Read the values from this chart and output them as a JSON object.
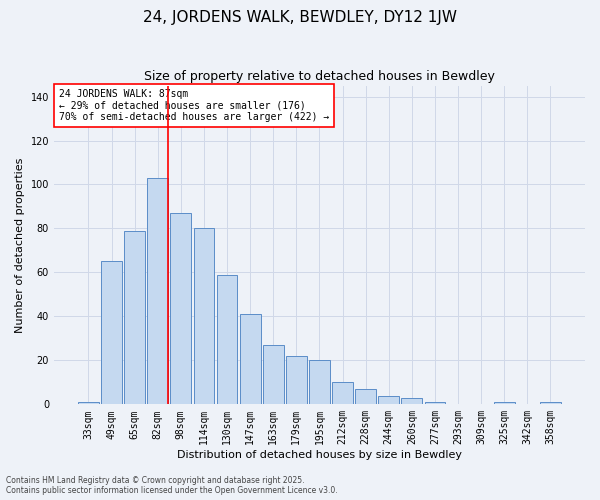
{
  "title": "24, JORDENS WALK, BEWDLEY, DY12 1JW",
  "subtitle": "Size of property relative to detached houses in Bewdley",
  "xlabel": "Distribution of detached houses by size in Bewdley",
  "ylabel": "Number of detached properties",
  "categories": [
    "33sqm",
    "49sqm",
    "65sqm",
    "82sqm",
    "98sqm",
    "114sqm",
    "130sqm",
    "147sqm",
    "163sqm",
    "179sqm",
    "195sqm",
    "212sqm",
    "228sqm",
    "244sqm",
    "260sqm",
    "277sqm",
    "293sqm",
    "309sqm",
    "325sqm",
    "342sqm",
    "358sqm"
  ],
  "values": [
    1,
    65,
    79,
    103,
    87,
    80,
    59,
    41,
    27,
    22,
    20,
    10,
    7,
    4,
    3,
    1,
    0,
    0,
    1,
    0,
    1
  ],
  "bar_color": "#c5d9f0",
  "bar_edge_color": "#5b8dc8",
  "grid_color": "#d0d8e8",
  "background_color": "#eef2f8",
  "vline_x_index": 3,
  "vline_color": "red",
  "annotation_text": "24 JORDENS WALK: 87sqm\n← 29% of detached houses are smaller (176)\n70% of semi-detached houses are larger (422) →",
  "ylim": [
    0,
    145
  ],
  "yticks": [
    0,
    20,
    40,
    60,
    80,
    100,
    120,
    140
  ],
  "footer": "Contains HM Land Registry data © Crown copyright and database right 2025.\nContains public sector information licensed under the Open Government Licence v3.0.",
  "title_fontsize": 11,
  "subtitle_fontsize": 9,
  "tick_fontsize": 7,
  "label_fontsize": 8,
  "annotation_fontsize": 7
}
